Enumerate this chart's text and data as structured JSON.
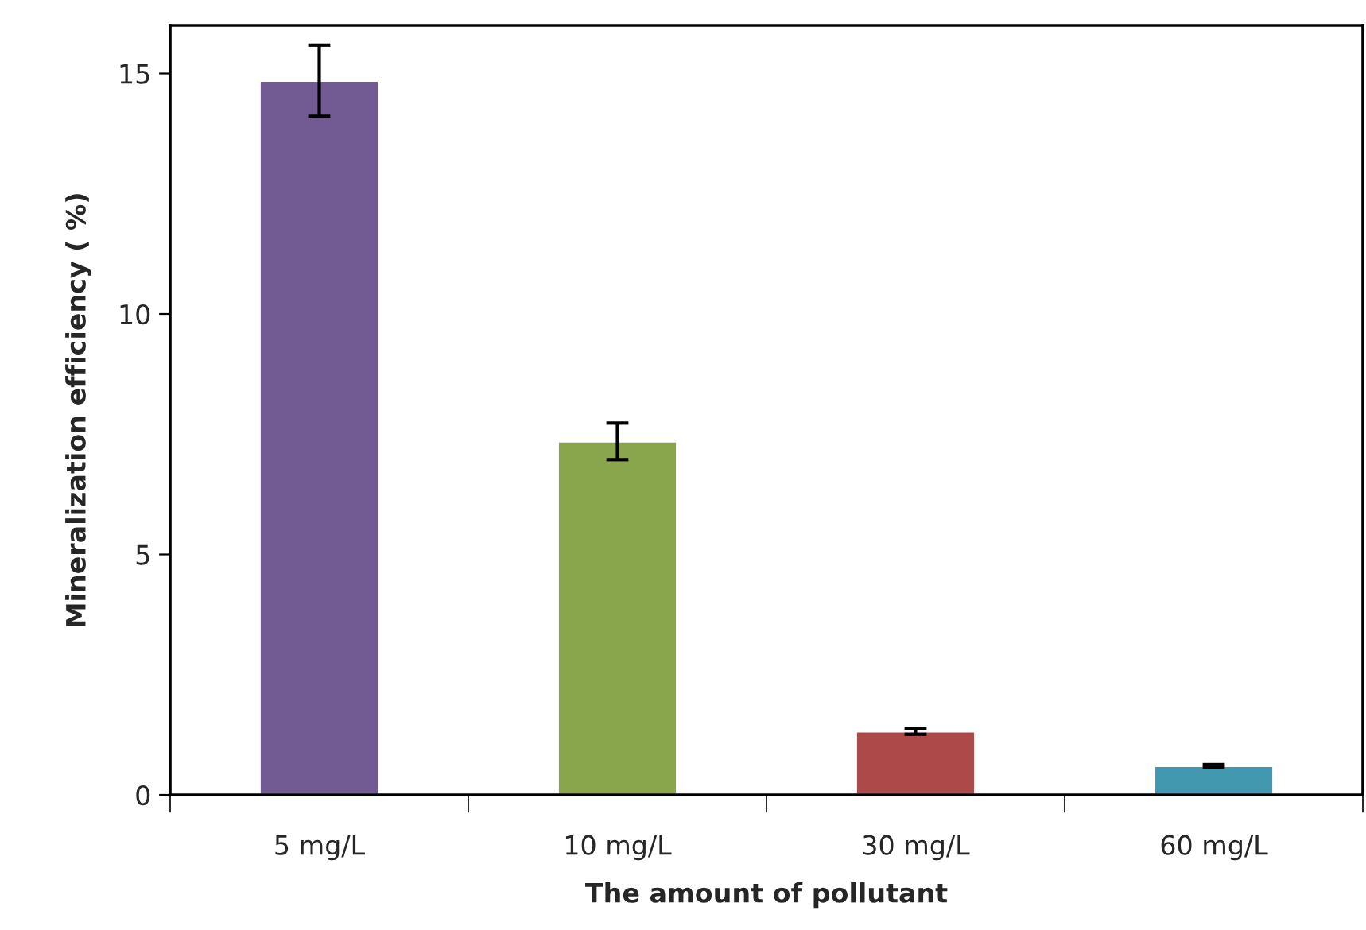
{
  "chart_data": {
    "type": "bar",
    "xlabel": "The amount of pollutant",
    "ylabel": "Mineralization efficiency ( %)",
    "categories": [
      "5 mg/L",
      "10 mg/L",
      "30 mg/L",
      "60 mg/L"
    ],
    "values": [
      14.85,
      7.35,
      1.32,
      0.6
    ],
    "errors": [
      0.74,
      0.38,
      0.06,
      0.03
    ],
    "colors": [
      "#725b92",
      "#8aa64d",
      "#ab4a48",
      "#4298ae"
    ],
    "ylim": [
      0,
      16
    ],
    "yticks": [
      0,
      5,
      10,
      15
    ],
    "grid": false,
    "legend": false
  }
}
